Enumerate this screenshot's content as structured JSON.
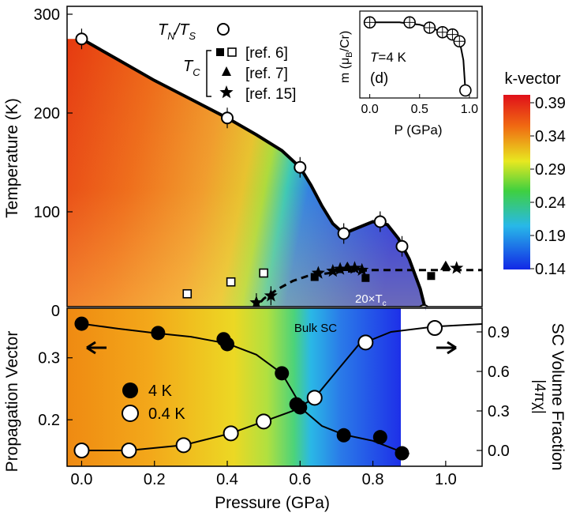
{
  "chart_data": [
    {
      "panel": "top",
      "type": "scatter+heatmap",
      "ylabel": "Temperature (K)",
      "yticks": [
        "0",
        "100",
        "200",
        "300"
      ],
      "xlim": [
        -0.04,
        1.1
      ],
      "ylim": [
        0,
        300
      ],
      "legend": {
        "tn_ts": [
          "T",
          "N",
          "/T",
          "S"
        ],
        "tc": [
          "T",
          "C"
        ],
        "refs": [
          "[ref. 6]",
          "[ref. 7]",
          "[ref. 15]"
        ]
      },
      "annotation": [
        "20×T",
        "c"
      ],
      "colorbar": {
        "title": "k-vector",
        "ticks": [
          "0.39",
          "0.34",
          "0.29",
          "0.24",
          "0.19",
          "0.14"
        ],
        "range": [
          0.14,
          0.39
        ]
      },
      "tn_ts_points": [
        {
          "x": 0.0,
          "y": 275
        },
        {
          "x": 0.4,
          "y": 195
        },
        {
          "x": 0.6,
          "y": 145
        },
        {
          "x": 0.72,
          "y": 78
        },
        {
          "x": 0.82,
          "y": 90
        },
        {
          "x": 0.88,
          "y": 65
        },
        {
          "x": 0.94,
          "y": 0
        }
      ],
      "ref6_filled": [
        {
          "x": 0.64,
          "y": 34
        },
        {
          "x": 0.78,
          "y": 33
        },
        {
          "x": 0.96,
          "y": 35
        }
      ],
      "ref6_open": [
        {
          "x": 0.29,
          "y": 17
        },
        {
          "x": 0.41,
          "y": 29
        },
        {
          "x": 0.5,
          "y": 38
        }
      ],
      "ref7": [
        {
          "x": 0.73,
          "y": 44
        },
        {
          "x": 1.0,
          "y": 45
        }
      ],
      "ref15": [
        {
          "x": 0.48,
          "y": 8
        },
        {
          "x": 0.52,
          "y": 15
        },
        {
          "x": 0.65,
          "y": 38
        },
        {
          "x": 0.69,
          "y": 40
        },
        {
          "x": 0.71,
          "y": 42
        },
        {
          "x": 0.75,
          "y": 43
        },
        {
          "x": 0.77,
          "y": 41
        },
        {
          "x": 1.03,
          "y": 43
        }
      ],
      "tn_ts_line": [
        [
          0.0,
          275
        ],
        [
          0.1,
          254
        ],
        [
          0.2,
          233
        ],
        [
          0.3,
          214
        ],
        [
          0.4,
          195
        ],
        [
          0.48,
          178
        ],
        [
          0.55,
          162
        ],
        [
          0.6,
          145
        ],
        [
          0.63,
          127
        ],
        [
          0.66,
          106
        ],
        [
          0.69,
          88
        ],
        [
          0.72,
          78
        ],
        [
          0.76,
          84
        ],
        [
          0.8,
          90
        ],
        [
          0.84,
          87
        ],
        [
          0.87,
          73
        ],
        [
          0.9,
          52
        ],
        [
          0.93,
          22
        ],
        [
          0.945,
          0
        ]
      ],
      "tc_dashed_line": [
        [
          0.47,
          0
        ],
        [
          0.5,
          12
        ],
        [
          0.54,
          22
        ],
        [
          0.58,
          30
        ],
        [
          0.62,
          35
        ],
        [
          0.7,
          39
        ],
        [
          0.8,
          41
        ],
        [
          1.1,
          41
        ]
      ]
    },
    {
      "panel": "bottom",
      "type": "scatter",
      "xlabel": "Pressure (GPa)",
      "xticks": [
        "0.0",
        "0.2",
        "0.4",
        "0.6",
        "0.8",
        "1.0"
      ],
      "xlim": [
        -0.04,
        1.1
      ],
      "ylabel_left": "Propagation Vector",
      "yticks_left": [
        "0.2",
        "0.3"
      ],
      "ylim_left": [
        0.125,
        0.38
      ],
      "ylabel_right": [
        "SC Volume Fraction",
        "|4πχ|"
      ],
      "yticks_right": [
        "0.0",
        "0.3",
        "0.6",
        "0.9"
      ],
      "ylim_right": [
        -0.12,
        1.08
      ],
      "annotation": "Bulk SC",
      "series": [
        {
          "name": "4 K",
          "axis": "left",
          "marker": "filled-circle",
          "x": [
            0.0,
            0.21,
            0.39,
            0.4,
            0.55,
            0.59,
            0.6,
            0.72,
            0.82,
            0.88
          ],
          "y": [
            0.355,
            0.34,
            0.33,
            0.322,
            0.275,
            0.225,
            0.22,
            0.175,
            0.172,
            0.146
          ]
        },
        {
          "name": "0.4 K",
          "axis": "right",
          "marker": "open-circle",
          "x": [
            0.0,
            0.13,
            0.28,
            0.41,
            0.5,
            0.64,
            0.78,
            0.97
          ],
          "y": [
            0.0,
            0.0,
            0.04,
            0.13,
            0.22,
            0.4,
            0.82,
            0.93
          ]
        }
      ],
      "fit_4K": [
        [
          0.0,
          0.355
        ],
        [
          0.1,
          0.347
        ],
        [
          0.2,
          0.34
        ],
        [
          0.3,
          0.334
        ],
        [
          0.4,
          0.323
        ],
        [
          0.48,
          0.305
        ],
        [
          0.55,
          0.275
        ],
        [
          0.58,
          0.245
        ],
        [
          0.61,
          0.215
        ],
        [
          0.66,
          0.19
        ],
        [
          0.72,
          0.176
        ],
        [
          0.8,
          0.166
        ],
        [
          0.88,
          0.148
        ],
        [
          0.9,
          0.145
        ]
      ],
      "fit_04K": [
        [
          0.0,
          0.0
        ],
        [
          0.13,
          0.0
        ],
        [
          0.28,
          0.04
        ],
        [
          0.41,
          0.13
        ],
        [
          0.5,
          0.22
        ],
        [
          0.58,
          0.3
        ],
        [
          0.64,
          0.4
        ],
        [
          0.7,
          0.6
        ],
        [
          0.76,
          0.8
        ],
        [
          0.85,
          0.9
        ],
        [
          0.97,
          0.94
        ],
        [
          1.1,
          0.96
        ]
      ]
    },
    {
      "panel": "inset",
      "type": "scatter",
      "xlabel": "P (GPa)",
      "xticks": [
        "0.0",
        "0.5",
        "1.0"
      ],
      "ylabel": [
        "m (μ",
        "B",
        "/Cr)"
      ],
      "ylim": [
        0,
        1.15
      ],
      "xlim": [
        -0.1,
        1.08
      ],
      "annotation": [
        "T",
        "=4 K"
      ],
      "panel_label": "(d)",
      "x": [
        0.0,
        0.4,
        0.6,
        0.73,
        0.83,
        0.9,
        0.96
      ],
      "y": [
        1.0,
        1.0,
        0.93,
        0.87,
        0.84,
        0.75,
        0.1
      ],
      "fit": [
        [
          0.0,
          1.0
        ],
        [
          0.3,
          1.0
        ],
        [
          0.5,
          0.97
        ],
        [
          0.6,
          0.93
        ],
        [
          0.7,
          0.89
        ],
        [
          0.8,
          0.84
        ],
        [
          0.87,
          0.78
        ],
        [
          0.91,
          0.7
        ],
        [
          0.94,
          0.5
        ],
        [
          0.96,
          0.1
        ]
      ]
    }
  ]
}
